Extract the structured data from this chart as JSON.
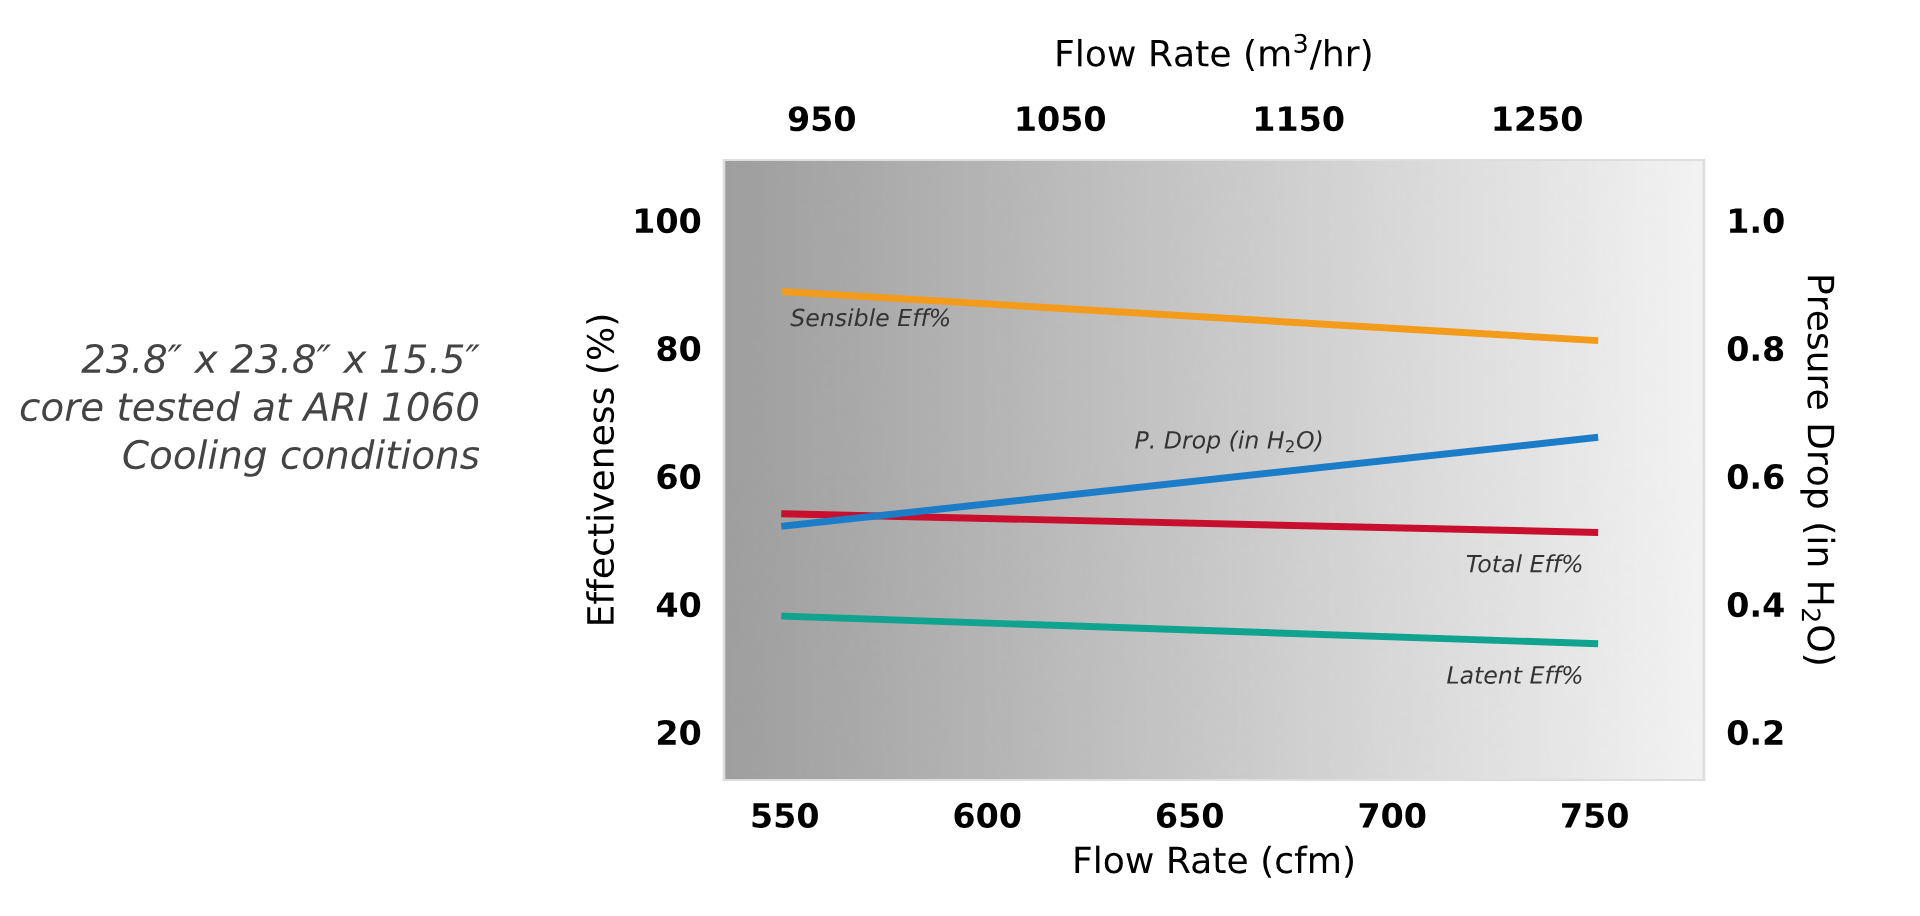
{
  "chart_data": {
    "type": "line",
    "xlabel": "Flow Rate (cfm)",
    "ylabel": "Effectiveness (%)",
    "y2label": "Presure Drop (in H$_{2}$O)",
    "x2label": "Flow Rate (m$^{3}$/hr)",
    "x": [
      550,
      750
    ],
    "xlim": [
      535,
      777
    ],
    "xticks": [
      550,
      600,
      650,
      700,
      750
    ],
    "x2lim": [
      909,
      1320
    ],
    "x2ticks": [
      950,
      1050,
      1150,
      1250
    ],
    "ylim": [
      12.5,
      109.4
    ],
    "yticks": [
      20,
      40,
      60,
      80,
      100
    ],
    "y2lim": [
      0.125,
      1.094
    ],
    "y2ticks": [
      {
        "value": 0.2,
        "label": "0.2"
      },
      {
        "value": 0.4,
        "label": "0.4"
      },
      {
        "value": 0.6,
        "label": "0.6"
      },
      {
        "value": 0.8,
        "label": "0.8"
      },
      {
        "value": 1.0,
        "label": "1.0"
      }
    ],
    "series": [
      {
        "name": "Sensible Eff%",
        "color": "#f39c1b",
        "values": [
          88.8,
          81.2
        ]
      },
      {
        "name": "P. Drop (in H$_{2}$O)",
        "color": "#1b7cc8",
        "values": [
          0.522,
          0.66
        ],
        "axis": "y2"
      },
      {
        "name": "Total Eff%",
        "color": "#c8102e",
        "values": [
          54.1,
          51.2
        ]
      },
      {
        "name": "Latent Eff%",
        "color": "#10a38f",
        "values": [
          38.1,
          33.8
        ]
      }
    ],
    "grid": false,
    "legend": false,
    "annotations": [
      "23.8″ x 23.8″ x 15.5″ core tested at ARI 1060 Cooling conditions"
    ]
  }
}
